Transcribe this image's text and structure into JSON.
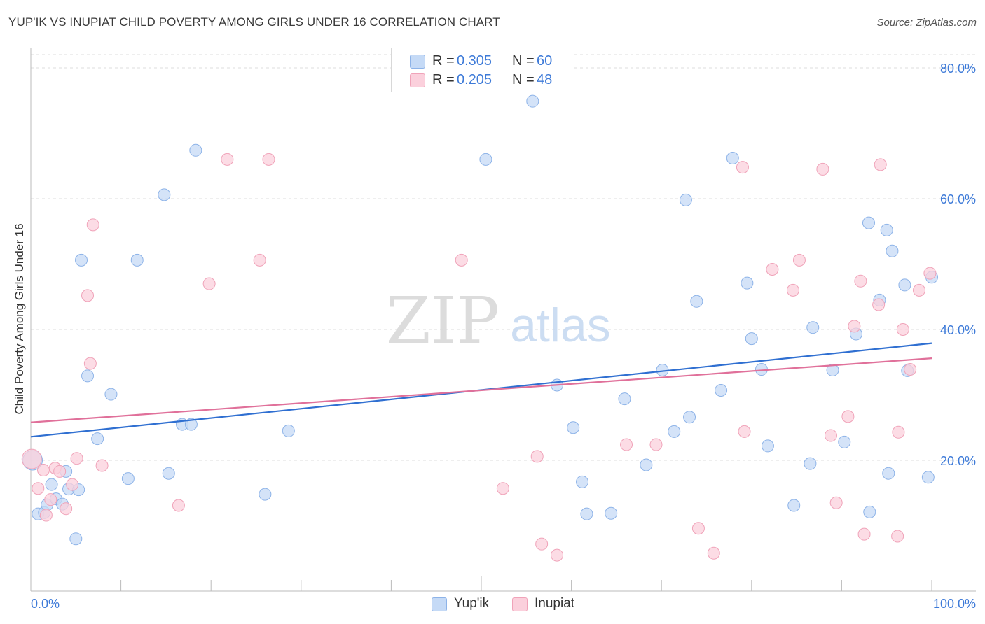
{
  "header": {
    "title": "YUP'IK VS INUPIAT CHILD POVERTY AMONG GIRLS UNDER 16 CORRELATION CHART",
    "source": "Source: ZipAtlas.com"
  },
  "watermark": {
    "zip": "ZIP",
    "atlas": "atlas"
  },
  "stats_legend": {
    "rows": [
      {
        "r_label": "R =",
        "r_value": "0.305",
        "n_label": "N =",
        "n_value": "60",
        "color": "#a9c8f2"
      },
      {
        "r_label": "R =",
        "r_value": "0.205",
        "n_label": "N =",
        "n_value": "48",
        "color": "#f6b6c9"
      }
    ]
  },
  "colors": {
    "yupik_fill": "#c5daf6",
    "yupik_stroke": "#8db3e8",
    "yupik_line": "#2f6fd1",
    "inupiat_fill": "#fbd0dc",
    "inupiat_stroke": "#f0a3b9",
    "inupiat_line": "#e0709a",
    "tick_text": "#3d7ad8",
    "grid": "#dcdcdc"
  },
  "chart_data": {
    "type": "scatter",
    "title": "YUP'IK VS INUPIAT CHILD POVERTY AMONG GIRLS UNDER 16 CORRELATION CHART",
    "xlabel": "",
    "ylabel": "Child Poverty Among Girls Under 16",
    "xlim": [
      0,
      100
    ],
    "ylim": [
      0,
      80
    ],
    "x_tick_labels": [
      "0.0%",
      "100.0%"
    ],
    "y_ticks": [
      20,
      40,
      60,
      80
    ],
    "y_tick_labels": [
      "20.0%",
      "40.0%",
      "60.0%",
      "80.0%"
    ],
    "grid": true,
    "legend_position": "bottom-center",
    "series": [
      {
        "name": "Yup'ik",
        "r": 0.305,
        "n": 60,
        "trend": [
          [
            0,
            23.6
          ],
          [
            100,
            37.9
          ]
        ],
        "points": [
          [
            0.2,
            20.0
          ],
          [
            0.8,
            11.8
          ],
          [
            1.5,
            12.0
          ],
          [
            1.8,
            13.2
          ],
          [
            2.3,
            16.3
          ],
          [
            2.8,
            14.1
          ],
          [
            3.5,
            13.3
          ],
          [
            3.9,
            18.3
          ],
          [
            4.2,
            15.6
          ],
          [
            5.0,
            8.0
          ],
          [
            5.3,
            15.5
          ],
          [
            5.6,
            50.6
          ],
          [
            6.3,
            32.9
          ],
          [
            7.4,
            23.3
          ],
          [
            8.9,
            30.1
          ],
          [
            10.8,
            17.2
          ],
          [
            11.8,
            50.6
          ],
          [
            14.8,
            60.6
          ],
          [
            15.3,
            18.0
          ],
          [
            16.8,
            25.5
          ],
          [
            17.8,
            25.5
          ],
          [
            18.3,
            67.4
          ],
          [
            26.0,
            14.8
          ],
          [
            28.6,
            24.5
          ],
          [
            55.7,
            74.9
          ],
          [
            50.5,
            66.0
          ],
          [
            58.4,
            31.5
          ],
          [
            60.2,
            25.0
          ],
          [
            61.7,
            11.8
          ],
          [
            61.2,
            16.7
          ],
          [
            64.4,
            11.9
          ],
          [
            65.9,
            29.4
          ],
          [
            68.3,
            19.3
          ],
          [
            70.1,
            33.8
          ],
          [
            71.4,
            24.4
          ],
          [
            72.7,
            59.8
          ],
          [
            73.1,
            26.6
          ],
          [
            73.9,
            44.3
          ],
          [
            76.6,
            30.7
          ],
          [
            77.9,
            66.2
          ],
          [
            79.5,
            47.1
          ],
          [
            80.0,
            38.6
          ],
          [
            81.1,
            33.9
          ],
          [
            81.8,
            22.2
          ],
          [
            84.7,
            13.1
          ],
          [
            86.5,
            19.5
          ],
          [
            86.8,
            40.3
          ],
          [
            89.0,
            33.8
          ],
          [
            90.3,
            22.8
          ],
          [
            91.6,
            39.3
          ],
          [
            93.0,
            56.3
          ],
          [
            93.1,
            12.1
          ],
          [
            94.2,
            44.5
          ],
          [
            95.0,
            55.2
          ],
          [
            95.2,
            18.0
          ],
          [
            95.6,
            52.0
          ],
          [
            97.0,
            46.8
          ],
          [
            97.3,
            33.7
          ],
          [
            99.6,
            17.4
          ],
          [
            100.0,
            48.0
          ]
        ]
      },
      {
        "name": "Inupiat",
        "r": 0.205,
        "n": 48,
        "trend": [
          [
            0,
            25.8
          ],
          [
            100,
            35.6
          ]
        ],
        "points": [
          [
            0.1,
            20.2
          ],
          [
            0.8,
            15.7
          ],
          [
            1.4,
            18.5
          ],
          [
            1.7,
            11.6
          ],
          [
            2.2,
            14.0
          ],
          [
            2.7,
            18.8
          ],
          [
            3.2,
            18.3
          ],
          [
            3.9,
            12.6
          ],
          [
            4.6,
            16.3
          ],
          [
            5.1,
            20.3
          ],
          [
            6.3,
            45.2
          ],
          [
            6.6,
            34.8
          ],
          [
            6.9,
            56.0
          ],
          [
            7.9,
            19.2
          ],
          [
            16.4,
            13.1
          ],
          [
            19.8,
            47.0
          ],
          [
            21.8,
            66.0
          ],
          [
            25.4,
            50.6
          ],
          [
            26.4,
            66.0
          ],
          [
            47.8,
            50.6
          ],
          [
            52.4,
            15.7
          ],
          [
            56.2,
            20.6
          ],
          [
            56.7,
            7.2
          ],
          [
            58.4,
            5.5
          ],
          [
            66.1,
            22.4
          ],
          [
            69.4,
            22.4
          ],
          [
            74.1,
            9.6
          ],
          [
            75.8,
            5.8
          ],
          [
            79.0,
            64.8
          ],
          [
            79.2,
            24.4
          ],
          [
            82.3,
            49.2
          ],
          [
            84.6,
            46.0
          ],
          [
            85.3,
            50.6
          ],
          [
            87.9,
            64.5
          ],
          [
            88.8,
            23.8
          ],
          [
            89.4,
            13.5
          ],
          [
            90.7,
            26.7
          ],
          [
            91.4,
            40.5
          ],
          [
            92.1,
            47.4
          ],
          [
            92.5,
            8.7
          ],
          [
            94.1,
            43.8
          ],
          [
            94.3,
            65.2
          ],
          [
            96.2,
            8.4
          ],
          [
            96.3,
            24.3
          ],
          [
            96.8,
            40.0
          ],
          [
            97.6,
            33.9
          ],
          [
            98.6,
            46.0
          ],
          [
            99.8,
            48.6
          ]
        ]
      }
    ]
  }
}
